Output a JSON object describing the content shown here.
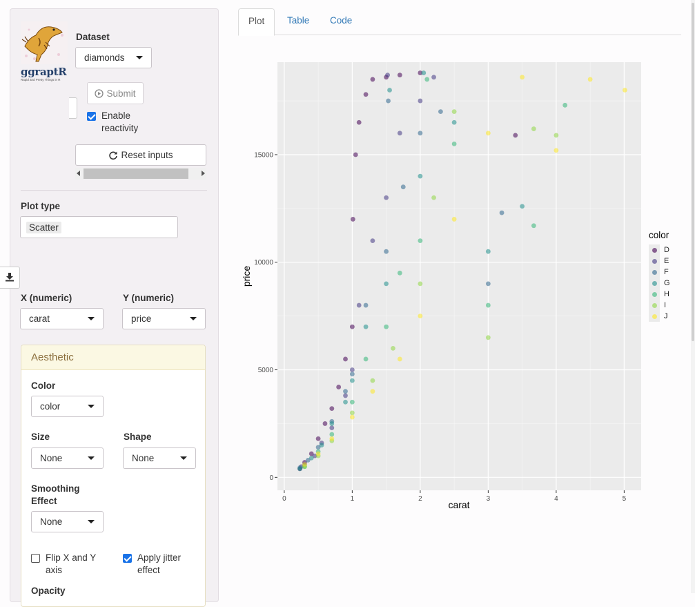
{
  "sidebar": {
    "logo": {
      "word": "ggraptR",
      "tagline": "Rapid and Pretty Things in R"
    },
    "dataset": {
      "label": "Dataset",
      "value": "diamonds"
    },
    "submit_label": "Submit",
    "enable_reactivity_label": "Enable reactivity",
    "enable_reactivity_checked": true,
    "reset_label": "Reset inputs",
    "plot_type": {
      "label": "Plot type",
      "value": "Scatter"
    },
    "x": {
      "label": "X (numeric)",
      "value": "carat"
    },
    "y": {
      "label": "Y (numeric)",
      "value": "price"
    },
    "aesthetic": {
      "title": "Aesthetic",
      "color": {
        "label": "Color",
        "value": "color"
      },
      "size": {
        "label": "Size",
        "value": "None"
      },
      "shape": {
        "label": "Shape",
        "value": "None"
      },
      "smoothing": {
        "label": "Smoothing Effect",
        "value": "None"
      },
      "flip": {
        "label": "Flip X and Y axis",
        "checked": false
      },
      "jitter": {
        "label": "Apply jitter effect",
        "checked": true
      },
      "opacity_label": "Opacity"
    }
  },
  "tabs": [
    {
      "label": "Plot",
      "active": true
    },
    {
      "label": "Table",
      "active": false
    },
    {
      "label": "Code",
      "active": false
    }
  ],
  "chart_data": {
    "type": "scatter",
    "xlabel": "carat",
    "ylabel": "price",
    "xlim": [
      -0.1,
      5.25
    ],
    "ylim": [
      -600,
      19300
    ],
    "xticks": [
      0,
      1,
      2,
      3,
      4,
      5
    ],
    "yticks": [
      0,
      5000,
      10000,
      15000
    ],
    "ytick_labels": [
      "0",
      "5000",
      "10000",
      "15000"
    ],
    "grid": true,
    "legend": {
      "title": "color",
      "position": "right",
      "entries": [
        "D",
        "E",
        "F",
        "G",
        "H",
        "I",
        "J"
      ],
      "colors": [
        "#440154",
        "#443983",
        "#31688e",
        "#21908c",
        "#35b779",
        "#8fd744",
        "#fde725"
      ]
    },
    "series": [
      {
        "name": "D",
        "x": [
          0.23,
          0.3,
          0.4,
          0.5,
          0.6,
          0.7,
          0.8,
          0.9,
          1.0,
          1.01,
          1.05,
          1.1,
          1.2,
          1.3,
          1.5,
          1.7,
          2.0,
          3.4
        ],
        "y": [
          400,
          700,
          1100,
          1800,
          2500,
          3200,
          4200,
          5500,
          7000,
          12000,
          15000,
          16500,
          17800,
          18500,
          18600,
          18700,
          18800,
          15900
        ]
      },
      {
        "name": "E",
        "x": [
          0.25,
          0.3,
          0.45,
          0.55,
          0.7,
          0.9,
          1.0,
          1.1,
          1.3,
          1.5,
          1.52,
          1.7,
          2.0,
          2.2
        ],
        "y": [
          500,
          600,
          1000,
          1600,
          2300,
          3800,
          5000,
          8000,
          11000,
          13000,
          18700,
          16000,
          17500,
          18600
        ]
      },
      {
        "name": "F",
        "x": [
          0.23,
          0.35,
          0.5,
          0.7,
          0.9,
          1.0,
          1.2,
          1.5,
          1.53,
          1.75,
          2.0,
          2.3,
          3.0,
          3.2
        ],
        "y": [
          450,
          800,
          1400,
          2600,
          4000,
          4800,
          8000,
          10500,
          17500,
          13500,
          16000,
          17000,
          9000,
          12300
        ]
      },
      {
        "name": "G",
        "x": [
          0.23,
          0.4,
          0.55,
          0.7,
          0.9,
          1.0,
          1.2,
          1.5,
          1.55,
          2.0,
          2.05,
          2.5,
          3.0,
          3.5
        ],
        "y": [
          400,
          900,
          1500,
          2500,
          3500,
          4500,
          7000,
          9000,
          18000,
          14000,
          18800,
          16500,
          10500,
          12600
        ]
      },
      {
        "name": "H",
        "x": [
          0.3,
          0.5,
          0.7,
          1.0,
          1.2,
          1.5,
          1.7,
          2.0,
          2.1,
          2.5,
          3.0,
          3.67,
          4.13
        ],
        "y": [
          500,
          1200,
          2000,
          3500,
          5500,
          7000,
          9500,
          11000,
          18500,
          15500,
          8000,
          11700,
          17300
        ]
      },
      {
        "name": "I",
        "x": [
          0.3,
          0.5,
          0.7,
          1.0,
          1.3,
          1.6,
          2.0,
          2.2,
          2.5,
          3.0,
          3.67,
          4.0
        ],
        "y": [
          500,
          1000,
          1700,
          3000,
          4500,
          6000,
          9000,
          13000,
          17000,
          6500,
          16200,
          15900
        ]
      },
      {
        "name": "J",
        "x": [
          0.3,
          0.5,
          0.7,
          1.0,
          1.3,
          1.7,
          2.0,
          2.5,
          3.0,
          3.5,
          4.0,
          4.5,
          5.01
        ],
        "y": [
          600,
          1100,
          1800,
          2800,
          4000,
          5500,
          7500,
          12000,
          16000,
          18600,
          15200,
          18500,
          18000
        ]
      }
    ]
  }
}
